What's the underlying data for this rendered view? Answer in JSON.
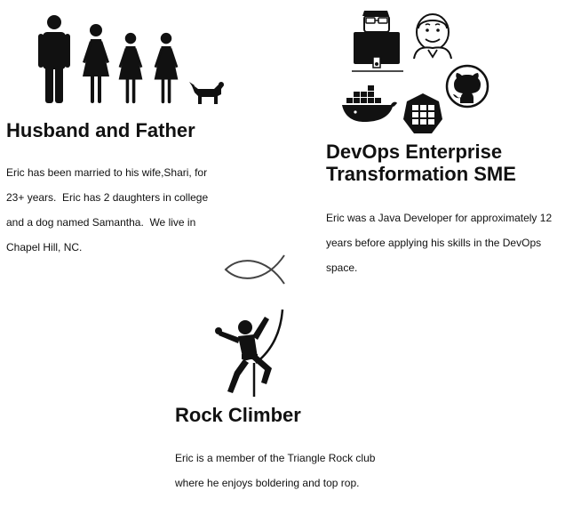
{
  "family": {
    "title": "Husband and Father",
    "paragraph": "Eric has been married to his wife,Shari, for 23+ years.  Eric has 2 daughters in college and a dog named Samantha.  We live in Chapel Hill, NC.",
    "icons": [
      "man-icon",
      "woman-icon",
      "woman-icon",
      "woman-icon",
      "dog-icon"
    ]
  },
  "devops": {
    "title": "DevOps Enterprise Transformation SME",
    "paragraph": "Eric was a Java Developer for approximately 12 years before applying his skills in the DevOps space.",
    "icons": [
      "developer-workstation-icon",
      "jenkins-icon",
      "docker-icon",
      "kubernetes-icon",
      "github-icon"
    ]
  },
  "faith": {
    "icon": "ichthys-fish-icon"
  },
  "climbing": {
    "title": "Rock Climber",
    "paragraph": "Eric is a member of the Triangle Rock club where he enjoys boldering and top rop.",
    "icon": "rock-climber-icon"
  },
  "colors": {
    "text": "#111111",
    "icon": "#111111",
    "background": "#ffffff"
  }
}
